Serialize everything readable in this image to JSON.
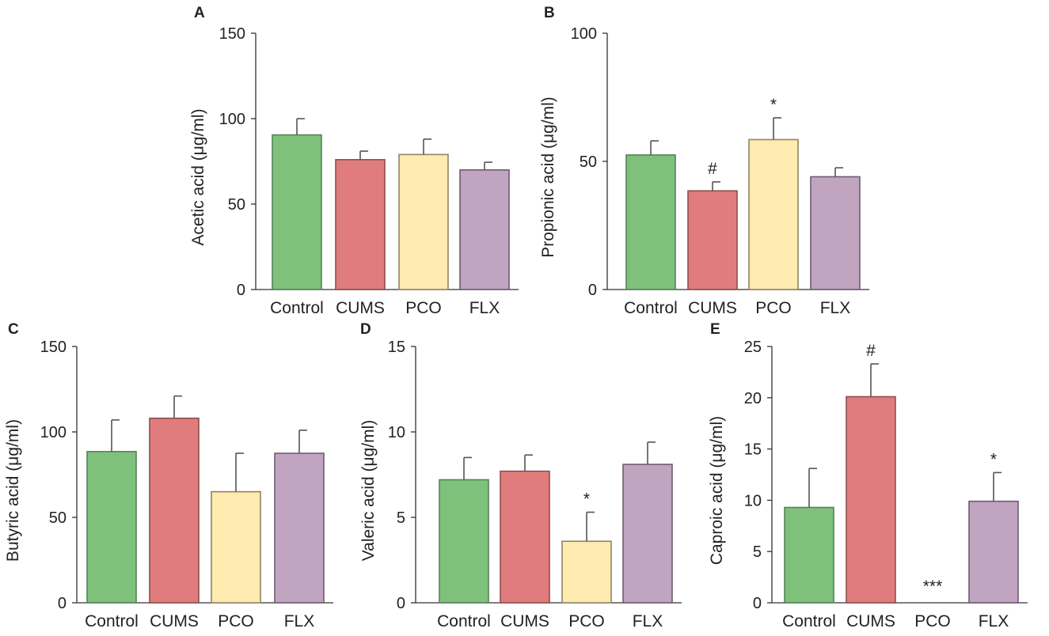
{
  "chart_data": [
    {
      "panel": "A",
      "type": "bar",
      "categories": [
        "Control",
        "CUMS",
        "PCO",
        "FLX"
      ],
      "values": [
        90.5,
        76,
        79,
        70
      ],
      "errors": [
        9.5,
        5,
        9,
        4.5
      ],
      "ylabel": "Acetic acid (μg/ml)",
      "ylim": [
        0,
        150
      ],
      "yticks": [
        "0",
        "50",
        "100",
        "150"
      ],
      "annotations": [
        "",
        "",
        "",
        ""
      ]
    },
    {
      "panel": "B",
      "type": "bar",
      "categories": [
        "Control",
        "CUMS",
        "PCO",
        "FLX"
      ],
      "values": [
        52.5,
        38.5,
        58.5,
        44
      ],
      "errors": [
        5.5,
        3.5,
        8.5,
        3.5
      ],
      "ylabel": "Propionic acid (μg/ml)",
      "ylim": [
        0,
        100
      ],
      "yticks": [
        "0",
        "50",
        "100"
      ],
      "annotations": [
        "",
        "#",
        "*",
        ""
      ]
    },
    {
      "panel": "C",
      "type": "bar",
      "categories": [
        "Control",
        "CUMS",
        "PCO",
        "FLX"
      ],
      "values": [
        88.5,
        108,
        65,
        87.5
      ],
      "errors": [
        18.5,
        13,
        22.5,
        13.5
      ],
      "ylabel": "Butyric acid (μg/ml)",
      "ylim": [
        0,
        150
      ],
      "yticks": [
        "0",
        "50",
        "100",
        "150"
      ],
      "annotations": [
        "",
        "",
        "",
        ""
      ]
    },
    {
      "panel": "D",
      "type": "bar",
      "categories": [
        "Control",
        "CUMS",
        "PCO",
        "FLX"
      ],
      "values": [
        7.2,
        7.7,
        3.6,
        8.1
      ],
      "errors": [
        1.3,
        0.95,
        1.7,
        1.3
      ],
      "ylabel": "Valeric acid (μg/ml)",
      "ylim": [
        0,
        15
      ],
      "yticks": [
        "0",
        "5",
        "10",
        "15"
      ],
      "annotations": [
        "",
        "",
        "*",
        ""
      ]
    },
    {
      "panel": "E",
      "type": "bar",
      "categories": [
        "Control",
        "CUMS",
        "PCO",
        "FLX"
      ],
      "values": [
        9.3,
        20.1,
        0,
        9.9
      ],
      "errors": [
        3.8,
        3.2,
        0,
        2.8
      ],
      "ylabel": "Caproic acid (μg/ml)",
      "ylim": [
        0,
        25
      ],
      "yticks": [
        "0",
        "5",
        "10",
        "15",
        "20",
        "25"
      ],
      "annotations": [
        "",
        "#",
        "***",
        "*"
      ]
    }
  ],
  "colors": {
    "bar_fills": [
      "#7fc17b",
      "#e07d7c",
      "#ffeaaf",
      "#c1a4c0"
    ],
    "bar_edges": [
      "#54835b",
      "#8f4d4d",
      "#8f8463",
      "#6f5c70"
    ],
    "axis": "#333333",
    "error": "#555555",
    "text": "#222222"
  }
}
